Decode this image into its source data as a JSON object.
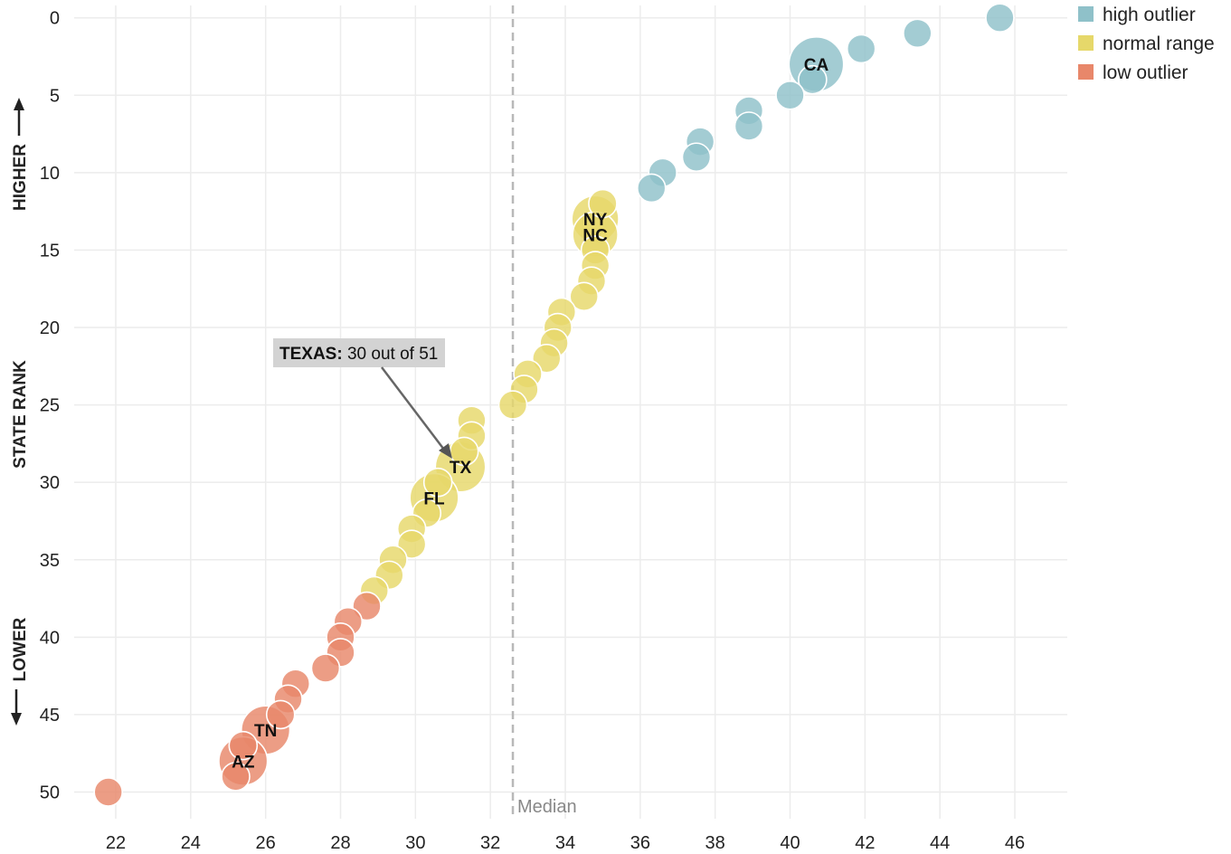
{
  "chart_data": {
    "type": "scatter",
    "ylabel": "STATE RANK",
    "ylabel_higher": "HIGHER",
    "ylabel_lower": "LOWER",
    "xlim": [
      20.6,
      47.4
    ],
    "ylim": [
      -0.8,
      52.6
    ],
    "y_inverted": true,
    "x_ticks": [
      22,
      24,
      26,
      28,
      30,
      32,
      34,
      36,
      38,
      40,
      42,
      44,
      46
    ],
    "y_ticks": [
      0,
      5,
      10,
      15,
      20,
      25,
      30,
      35,
      40,
      45,
      50
    ],
    "grid": true,
    "legend_position": "top-right",
    "legend": [
      {
        "key": "high",
        "label": "high outlier",
        "color": "#8fc1c9"
      },
      {
        "key": "normal",
        "label": "normal range",
        "color": "#e6d86a"
      },
      {
        "key": "low",
        "label": "low outlier",
        "color": "#e8876a"
      }
    ],
    "median": {
      "x": 32.6,
      "label": "Median"
    },
    "callout": {
      "bold": "TEXAS:",
      "text": " 30 out of 51"
    },
    "points": [
      {
        "x": 45.6,
        "y": 0,
        "size": 1,
        "group": "high",
        "label": ""
      },
      {
        "x": 43.4,
        "y": 1,
        "size": 1,
        "group": "high",
        "label": ""
      },
      {
        "x": 41.9,
        "y": 2,
        "size": 1,
        "group": "high",
        "label": ""
      },
      {
        "x": 40.7,
        "y": 3,
        "size": 3.8,
        "group": "high",
        "label": "CA"
      },
      {
        "x": 40.6,
        "y": 4,
        "size": 1,
        "group": "high",
        "label": ""
      },
      {
        "x": 40.0,
        "y": 5,
        "size": 1,
        "group": "high",
        "label": ""
      },
      {
        "x": 38.9,
        "y": 6,
        "size": 1,
        "group": "high",
        "label": ""
      },
      {
        "x": 38.9,
        "y": 7,
        "size": 1,
        "group": "high",
        "label": ""
      },
      {
        "x": 37.6,
        "y": 8,
        "size": 1,
        "group": "high",
        "label": ""
      },
      {
        "x": 37.5,
        "y": 9,
        "size": 1,
        "group": "high",
        "label": ""
      },
      {
        "x": 36.6,
        "y": 10,
        "size": 1,
        "group": "high",
        "label": ""
      },
      {
        "x": 36.3,
        "y": 11,
        "size": 1,
        "group": "high",
        "label": ""
      },
      {
        "x": 35.0,
        "y": 12,
        "size": 1,
        "group": "normal",
        "label": ""
      },
      {
        "x": 34.8,
        "y": 13,
        "size": 2.8,
        "group": "normal",
        "label": "NY"
      },
      {
        "x": 34.8,
        "y": 14,
        "size": 2.6,
        "group": "normal",
        "label": "NC"
      },
      {
        "x": 34.8,
        "y": 15,
        "size": 1,
        "group": "normal",
        "label": ""
      },
      {
        "x": 34.8,
        "y": 16,
        "size": 1,
        "group": "normal",
        "label": ""
      },
      {
        "x": 34.7,
        "y": 17,
        "size": 1,
        "group": "normal",
        "label": ""
      },
      {
        "x": 34.5,
        "y": 18,
        "size": 1,
        "group": "normal",
        "label": ""
      },
      {
        "x": 33.9,
        "y": 19,
        "size": 1,
        "group": "normal",
        "label": ""
      },
      {
        "x": 33.8,
        "y": 20,
        "size": 1,
        "group": "normal",
        "label": ""
      },
      {
        "x": 33.7,
        "y": 21,
        "size": 1,
        "group": "normal",
        "label": ""
      },
      {
        "x": 33.5,
        "y": 22,
        "size": 1,
        "group": "normal",
        "label": ""
      },
      {
        "x": 33.0,
        "y": 23,
        "size": 1,
        "group": "normal",
        "label": ""
      },
      {
        "x": 32.9,
        "y": 24,
        "size": 1,
        "group": "normal",
        "label": ""
      },
      {
        "x": 32.6,
        "y": 25,
        "size": 1,
        "group": "normal",
        "label": ""
      },
      {
        "x": 31.5,
        "y": 26,
        "size": 1,
        "group": "normal",
        "label": ""
      },
      {
        "x": 31.5,
        "y": 27,
        "size": 1,
        "group": "normal",
        "label": ""
      },
      {
        "x": 31.3,
        "y": 28,
        "size": 1,
        "group": "normal",
        "label": ""
      },
      {
        "x": 31.2,
        "y": 29,
        "size": 3.2,
        "group": "normal",
        "label": "TX"
      },
      {
        "x": 30.6,
        "y": 30,
        "size": 1,
        "group": "normal",
        "label": ""
      },
      {
        "x": 30.5,
        "y": 31,
        "size": 3.0,
        "group": "normal",
        "label": "FL"
      },
      {
        "x": 30.3,
        "y": 32,
        "size": 1,
        "group": "normal",
        "label": ""
      },
      {
        "x": 29.9,
        "y": 33,
        "size": 1,
        "group": "normal",
        "label": ""
      },
      {
        "x": 29.9,
        "y": 34,
        "size": 1,
        "group": "normal",
        "label": ""
      },
      {
        "x": 29.4,
        "y": 35,
        "size": 1,
        "group": "normal",
        "label": ""
      },
      {
        "x": 29.3,
        "y": 36,
        "size": 1,
        "group": "normal",
        "label": ""
      },
      {
        "x": 28.9,
        "y": 37,
        "size": 1,
        "group": "normal",
        "label": ""
      },
      {
        "x": 28.7,
        "y": 38,
        "size": 1,
        "group": "low",
        "label": ""
      },
      {
        "x": 28.2,
        "y": 39,
        "size": 1,
        "group": "low",
        "label": ""
      },
      {
        "x": 28.0,
        "y": 40,
        "size": 1,
        "group": "low",
        "label": ""
      },
      {
        "x": 28.0,
        "y": 41,
        "size": 1,
        "group": "low",
        "label": ""
      },
      {
        "x": 27.6,
        "y": 42,
        "size": 1,
        "group": "low",
        "label": ""
      },
      {
        "x": 26.8,
        "y": 43,
        "size": 1,
        "group": "low",
        "label": ""
      },
      {
        "x": 26.6,
        "y": 44,
        "size": 1,
        "group": "low",
        "label": ""
      },
      {
        "x": 26.4,
        "y": 45,
        "size": 1,
        "group": "low",
        "label": ""
      },
      {
        "x": 26.0,
        "y": 46,
        "size": 3.0,
        "group": "low",
        "label": "TN"
      },
      {
        "x": 25.4,
        "y": 47,
        "size": 1,
        "group": "low",
        "label": ""
      },
      {
        "x": 25.4,
        "y": 48,
        "size": 3.0,
        "group": "low",
        "label": "AZ"
      },
      {
        "x": 25.2,
        "y": 49,
        "size": 1,
        "group": "low",
        "label": ""
      },
      {
        "x": 21.8,
        "y": 50,
        "size": 1,
        "group": "low",
        "label": ""
      }
    ]
  }
}
